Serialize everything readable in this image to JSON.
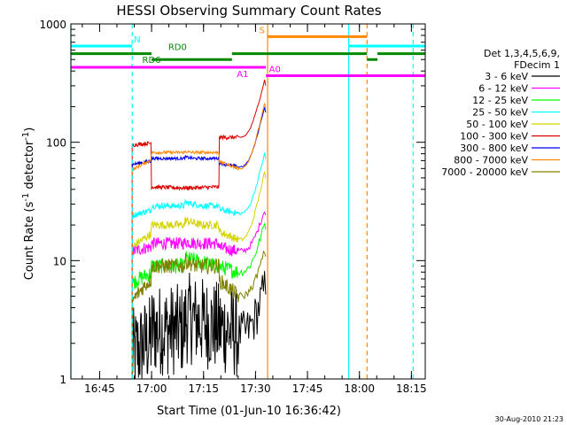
{
  "chart_data": {
    "type": "line",
    "title": "HESSI Observing Summary Count Rates",
    "xlabel": "Start Time (01-Jun-10 16:36:42)",
    "ylabel": "Count Rate (s",
    "ylabel_sup": "-1",
    "ylabel_rest": " detector",
    "ylabel_close": ")",
    "xlim": [
      16.6117,
      18.3167
    ],
    "ylim": [
      1,
      1000
    ],
    "yscale": "log",
    "x_ticks": [
      {
        "value": 16.75,
        "label": "16:45"
      },
      {
        "value": 17.0,
        "label": "17:00"
      },
      {
        "value": 17.25,
        "label": "17:15"
      },
      {
        "value": 17.5,
        "label": "17:30"
      },
      {
        "value": 17.75,
        "label": "17:45"
      },
      {
        "value": 18.0,
        "label": "18:00"
      },
      {
        "value": 18.25,
        "label": "18:15"
      }
    ],
    "y_ticks": [
      {
        "value": 1,
        "label": "1"
      },
      {
        "value": 10,
        "label": "10"
      },
      {
        "value": 100,
        "label": "100"
      },
      {
        "value": 1000,
        "label": "1000"
      }
    ],
    "legend": {
      "placement": "right",
      "header": [
        "Det 1,3,4,5,6,9,",
        "FDecim 1"
      ],
      "entries": [
        {
          "label": "3 - 6 keV",
          "color": "#000000"
        },
        {
          "label": "6 - 12 keV",
          "color": "#ff00ff"
        },
        {
          "label": "12 - 25 keV",
          "color": "#00ff00"
        },
        {
          "label": "25 - 50 keV",
          "color": "#00ffff"
        },
        {
          "label": "50 - 100 keV",
          "color": "#d4d400"
        },
        {
          "label": "100 - 300 keV",
          "color": "#dd0000"
        },
        {
          "label": "300 - 800 keV",
          "color": "#0000ee"
        },
        {
          "label": "800 - 7000 keV",
          "color": "#ff8800"
        },
        {
          "label": "7000 - 20000 keV",
          "color": "#808000"
        }
      ]
    },
    "segments": [
      {
        "x0": 16.9067,
        "x1": 17.4167,
        "ramp_end": 17.55
      },
      {
        "x0": 17.4167,
        "x1": 17.55
      }
    ],
    "series": [
      {
        "color": "#000000",
        "values": [
          1.6,
          2.6,
          3.3,
          2.4
        ],
        "jitter": 0.9,
        "spike": 1.5
      },
      {
        "color": "#ff00ff",
        "values": [
          12,
          14,
          14.5,
          12
        ],
        "jitter": 0.12,
        "spike": 1.4
      },
      {
        "color": "#00ff00",
        "values": [
          6.5,
          9,
          10.5,
          8.0
        ],
        "jitter": 0.15,
        "spike": 1.6
      },
      {
        "color": "#00ffff",
        "values": [
          24,
          29,
          31,
          25
        ],
        "jitter": 0.06,
        "spike": 2.0
      },
      {
        "color": "#d4d400",
        "values": [
          13,
          20,
          22,
          15
        ],
        "jitter": 0.08,
        "spike": 2.3
      },
      {
        "color": "#dd0000",
        "values": [
          95,
          40,
          38,
          110
        ],
        "shape": "flat-top",
        "jitter": 0.04,
        "spike": 1.9
      },
      {
        "color": "#0000ee",
        "values": [
          65,
          73,
          75,
          62
        ],
        "jitter": 0.03,
        "spike": 2.0
      },
      {
        "color": "#ff8800",
        "values": [
          58,
          82,
          84,
          60
        ],
        "jitter": 0.03,
        "spike": 2.2
      },
      {
        "color": "#808000",
        "values": [
          4.5,
          9,
          10,
          5
        ],
        "jitter": 0.15,
        "spike": 1.5
      }
    ],
    "vertical_lines": [
      {
        "x": 16.6117,
        "color": "#00ffff",
        "dash": false
      },
      {
        "x": 16.9067,
        "color": "#00ffff",
        "dash": true
      },
      {
        "x": 17.5583,
        "color": "#ff8800",
        "dash": false
      },
      {
        "x": 17.9483,
        "color": "#00ffff",
        "dash": false
      },
      {
        "x": 18.0367,
        "color": "#ff8800",
        "dash": true
      },
      {
        "x": 18.2583,
        "color": "#00ffff",
        "dash": true
      }
    ],
    "flag_bars": [
      {
        "label": "N",
        "color": "#00ffff",
        "y": 650,
        "label_x": 16.915,
        "label_side": "above",
        "ranges": [
          [
            16.6117,
            16.9067
          ],
          [
            17.9483,
            18.3167
          ]
        ]
      },
      {
        "label": "S",
        "color": "#ff8800",
        "y": 780,
        "label_x": 17.545,
        "label_side": "above-left",
        "ranges": [
          [
            17.5583,
            18.0367
          ]
        ]
      },
      {
        "label": "RD0",
        "color": "#008800",
        "y": 560,
        "label_x": 17.08,
        "label_side": "above",
        "ranges": [
          [
            16.6117,
            17.0
          ],
          [
            17.3867,
            18.0367
          ],
          [
            18.0867,
            18.3167
          ]
        ]
      },
      {
        "label": "RD6",
        "color": "#008800",
        "y": 500,
        "label_x": 16.955,
        "label_side": "center",
        "ranges": [
          [
            17.0,
            17.3867
          ],
          [
            18.0367,
            18.0867
          ]
        ]
      },
      {
        "label": "A1",
        "color": "#ff00ff",
        "y": 430,
        "label_x": 17.41,
        "label_side": "below",
        "ranges": [
          [
            16.6117,
            17.55
          ]
        ]
      },
      {
        "label": "A0",
        "color": "#ff00ff",
        "y": 365,
        "label_x": 17.565,
        "label_side": "above",
        "ranges": [
          [
            17.55,
            18.3167
          ]
        ]
      }
    ]
  },
  "footer": {
    "date": "30-Aug-2010 21:23"
  }
}
